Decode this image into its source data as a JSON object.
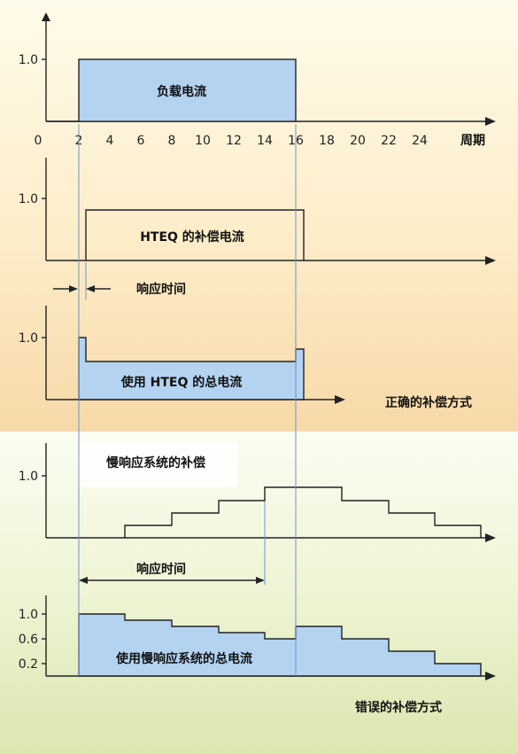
{
  "colors": {
    "bg_top": "#fff8e0",
    "bg_mid": "#f8dcae",
    "bg_low": "#f5f8e4",
    "bg_bottom": "#dde8b4",
    "fill_blue": "#b3d3f1",
    "guide_blue": "#6a96c9",
    "line": "#222222"
  },
  "panel1": {
    "y_tick": "1.0",
    "x_ticks": [
      "0",
      "2",
      "4",
      "6",
      "8",
      "10",
      "12",
      "14",
      "16",
      "18",
      "20",
      "22",
      "24"
    ],
    "x_unit": "周期",
    "label": "负载电流"
  },
  "panel2": {
    "y_tick": "1.0",
    "label": "HTEQ 的补偿电流",
    "response_label": "响应时间"
  },
  "panel3": {
    "y_tick": "1.0",
    "label": "使用 HTEQ 的总电流",
    "verdict": "正确的补偿方式"
  },
  "panel4": {
    "title": "慢响应系统的补偿",
    "y_tick": "1.0",
    "response_label": "响应时间"
  },
  "panel5": {
    "y_ticks": [
      "1.0",
      "0.6",
      "0.2"
    ],
    "label": "使用慢响应系统的总电流",
    "verdict": "错误的补偿方式"
  }
}
